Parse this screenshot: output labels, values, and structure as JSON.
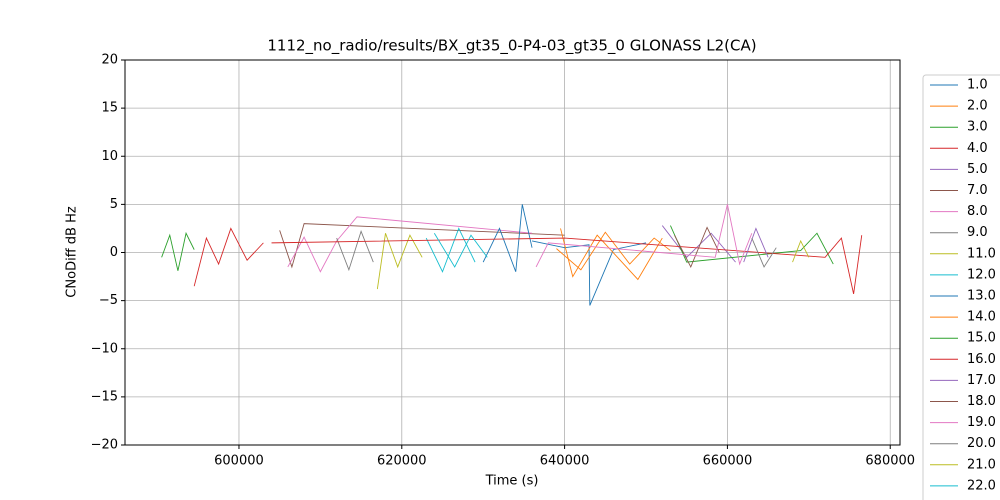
{
  "chart_data": {
    "type": "line",
    "title": "1112_no_radio/results/BX_gt35_0-P4-03_gt35_0 GLONASS L2(CA)",
    "x_label": "Time (s)",
    "y_label": "CNoDiff dB Hz",
    "xlim": [
      586000,
      681200
    ],
    "ylim": [
      -20,
      20
    ],
    "xticks": [
      600000,
      620000,
      640000,
      660000,
      680000
    ],
    "yticks": [
      {
        "value": -20,
        "label": "−20"
      },
      {
        "value": -15,
        "label": "−15"
      },
      {
        "value": -10,
        "label": "−10"
      },
      {
        "value": -5,
        "label": "−5"
      },
      0,
      5,
      10,
      15,
      20
    ],
    "grid": true,
    "legend": "outside right",
    "series": [
      {
        "name": "1.0",
        "color": "#1f77b4",
        "x": [
          636000,
          640000,
          643000,
          643100,
          646000,
          650000
        ],
        "values": [
          1.2,
          0.5,
          0.8,
          -5.5,
          0.3,
          1.0
        ]
      },
      {
        "name": "2.0",
        "color": "#ff7f0e",
        "x": [
          639000,
          642000,
          645000,
          648000,
          651000,
          653000
        ],
        "values": [
          0.4,
          -1.8,
          2.1,
          -1.2,
          1.5,
          0.2
        ]
      },
      {
        "name": "3.0",
        "color": "#2ca02c",
        "x": [
          590500,
          591500,
          592500,
          593500,
          594500
        ],
        "values": [
          -0.5,
          1.8,
          -1.9,
          2.0,
          0.3
        ]
      },
      {
        "name": "4.0",
        "color": "#d62728",
        "x": [
          594500,
          596000,
          597500,
          599000,
          601000,
          603000
        ],
        "values": [
          -3.5,
          1.5,
          -1.2,
          2.5,
          -0.8,
          1.0
        ]
      },
      {
        "name": "5.0",
        "color": "#9467bd",
        "x": [
          652000,
          655000,
          658000,
          661000
        ],
        "values": [
          2.8,
          -0.5,
          2.0,
          -1.0
        ]
      },
      {
        "name": "7.0",
        "color": "#8c564b",
        "x": [
          605000,
          606500,
          608000,
          640000
        ],
        "values": [
          2.3,
          -1.5,
          3.0,
          1.8
        ]
      },
      {
        "name": "8.0",
        "color": "#e377c2",
        "x": [
          606000,
          608000,
          610000,
          612000,
          614500,
          636000
        ],
        "values": [
          -1.5,
          1.6,
          -2.0,
          1.2,
          3.7,
          2.0
        ]
      },
      {
        "name": "9.0",
        "color": "#7f7f7f",
        "x": [
          612000,
          613500,
          615000,
          616500
        ],
        "values": [
          1.5,
          -1.8,
          2.2,
          -1.0
        ]
      },
      {
        "name": "11.0",
        "color": "#bcbd22",
        "x": [
          617000,
          618000,
          619500,
          621000,
          622500
        ],
        "values": [
          -3.8,
          2.0,
          -1.5,
          1.8,
          -0.5
        ]
      },
      {
        "name": "12.0",
        "color": "#17becf",
        "x": [
          623000,
          625000,
          627000,
          629000
        ],
        "values": [
          1.5,
          -2.0,
          2.5,
          -1.0
        ]
      },
      {
        "name": "13.0",
        "color": "#1f77b4",
        "x": [
          630000,
          632000,
          634000,
          634800,
          636000
        ],
        "values": [
          -1.0,
          2.5,
          -2.0,
          5.0,
          0.5
        ]
      },
      {
        "name": "14.0",
        "color": "#ff7f0e",
        "x": [
          639500,
          641000,
          644000,
          649000,
          652000
        ],
        "values": [
          2.5,
          -2.5,
          1.8,
          -2.8,
          1.5
        ]
      },
      {
        "name": "15.0",
        "color": "#2ca02c",
        "x": [
          653000,
          655000,
          669000,
          671000,
          673000
        ],
        "values": [
          2.8,
          -1.0,
          0.2,
          2.0,
          -1.2
        ]
      },
      {
        "name": "16.0",
        "color": "#d62728",
        "x": [
          604000,
          640000,
          672000,
          674000,
          675500,
          676500
        ],
        "values": [
          1.0,
          1.5,
          -0.5,
          1.5,
          -4.3,
          1.8
        ]
      },
      {
        "name": "17.0",
        "color": "#9467bd",
        "x": [
          662000,
          663500,
          665000
        ],
        "values": [
          -1.0,
          2.5,
          -0.5
        ]
      },
      {
        "name": "18.0",
        "color": "#8c564b",
        "x": [
          653500,
          655500,
          657500,
          659000
        ],
        "values": [
          1.8,
          -1.5,
          2.6,
          0.0
        ]
      },
      {
        "name": "19.0",
        "color": "#e377c2",
        "x": [
          636500,
          638000,
          658500,
          660000,
          661500,
          663000
        ],
        "values": [
          -1.5,
          1.0,
          -0.5,
          5.0,
          -1.2,
          2.0
        ]
      },
      {
        "name": "20.0",
        "color": "#7f7f7f",
        "x": [
          663000,
          664500,
          666000
        ],
        "values": [
          1.5,
          -1.5,
          0.5
        ]
      },
      {
        "name": "21.0",
        "color": "#bcbd22",
        "x": [
          668000,
          669000,
          670000
        ],
        "values": [
          -1.0,
          1.2,
          -0.5
        ]
      },
      {
        "name": "22.0",
        "color": "#17becf",
        "x": [
          624000,
          626500,
          628500,
          630500
        ],
        "values": [
          2.0,
          -1.5,
          1.8,
          -0.5
        ]
      }
    ]
  }
}
